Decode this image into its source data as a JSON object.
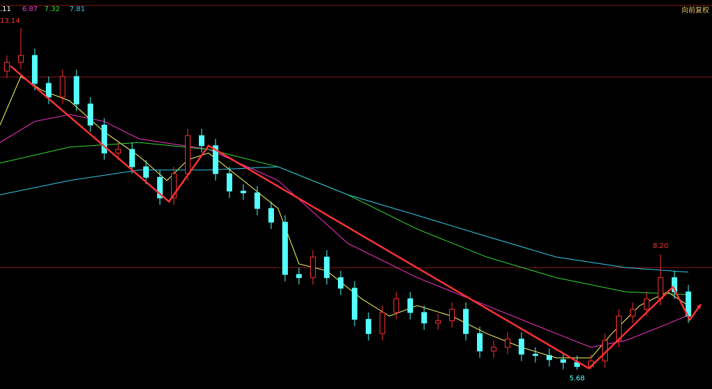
{
  "chart_data": {
    "type": "candlestick",
    "ylim": [
      5.26,
      13.75
    ],
    "background": "#000000",
    "up_color": "#ff3232",
    "down_color": "#54ffff",
    "adjust_label": "向前复权",
    "reference_lines": [
      13.63,
      12.07,
      7.91
    ],
    "candles": {
      "open": [
        12.2,
        12.39,
        12.54,
        11.93,
        11.63,
        12.08,
        11.48,
        11.02,
        10.41,
        10.49,
        10.11,
        9.88,
        9.43,
        9.96,
        10.79,
        10.57,
        9.96,
        9.58,
        9.54,
        9.2,
        8.9,
        7.76,
        7.69,
        8.14,
        7.69,
        7.46,
        6.78,
        6.47,
        6.93,
        7.23,
        6.93,
        6.7,
        6.75,
        7.0,
        6.47,
        6.09,
        6.17,
        6.35,
        6.02,
        5.99,
        5.9,
        5.84,
        5.75,
        5.87,
        6.32,
        6.85,
        7.0,
        7.23,
        7.69,
        7.38
      ],
      "high": [
        12.54,
        13.14,
        12.69,
        12.08,
        12.23,
        12.23,
        11.63,
        11.17,
        10.64,
        10.64,
        10.26,
        10.03,
        10.11,
        10.94,
        10.94,
        10.72,
        10.11,
        9.73,
        9.69,
        9.35,
        9.05,
        7.91,
        8.29,
        8.29,
        7.84,
        7.61,
        6.93,
        7.08,
        7.38,
        7.38,
        7.08,
        6.9,
        7.15,
        7.15,
        6.62,
        6.32,
        6.5,
        6.5,
        6.17,
        6.14,
        6.05,
        5.99,
        6.02,
        6.47,
        7.0,
        7.15,
        7.38,
        8.2,
        7.84,
        7.53
      ],
      "low": [
        12.05,
        12.24,
        11.78,
        11.48,
        11.48,
        11.33,
        10.87,
        10.26,
        10.26,
        9.96,
        9.73,
        9.28,
        9.28,
        9.81,
        10.42,
        9.81,
        9.43,
        9.39,
        9.05,
        8.75,
        7.61,
        7.54,
        7.54,
        7.54,
        7.31,
        6.63,
        6.32,
        6.32,
        6.78,
        6.78,
        6.55,
        6.55,
        6.6,
        6.32,
        5.94,
        5.94,
        6.02,
        5.87,
        5.84,
        5.75,
        5.69,
        5.68,
        5.7,
        5.72,
        6.17,
        6.7,
        6.85,
        7.08,
        7.23,
        6.7
      ],
      "close": [
        12.39,
        12.54,
        11.93,
        11.63,
        12.08,
        11.48,
        11.02,
        10.41,
        10.49,
        10.11,
        9.88,
        9.43,
        9.96,
        10.79,
        10.57,
        9.96,
        9.58,
        9.54,
        9.2,
        8.9,
        7.76,
        7.69,
        8.14,
        7.69,
        7.46,
        6.78,
        6.47,
        6.93,
        7.23,
        6.93,
        6.7,
        6.75,
        7.0,
        6.47,
        6.09,
        6.17,
        6.35,
        6.02,
        5.99,
        5.9,
        5.84,
        5.75,
        5.87,
        6.32,
        6.85,
        7.0,
        7.23,
        7.69,
        7.38,
        6.85
      ]
    },
    "moving_averages": [
      {
        "label": ".11",
        "color": "#ffff66",
        "x": [
          -0.5,
          1,
          2.5,
          4.5,
          7,
          9.5,
          11.5,
          13,
          14.5,
          17,
          19.5,
          21,
          23,
          25.5,
          27.5,
          29.5,
          32,
          34.5,
          37,
          39.5,
          42,
          43.5,
          45.5,
          47.5,
          49
        ],
        "values": [
          11.02,
          12.08,
          11.78,
          11.55,
          10.87,
          10.34,
          9.81,
          10.26,
          10.41,
          9.81,
          9.2,
          7.99,
          7.84,
          7.23,
          6.85,
          7.08,
          6.85,
          6.47,
          6.17,
          5.94,
          5.94,
          6.47,
          7.08,
          7.38,
          7.08
        ]
      },
      {
        "label": "6.87",
        "color": "#ff33cc",
        "x": [
          -0.5,
          2,
          4.5,
          7,
          9.5,
          14.5,
          19.5,
          24.5,
          29.5,
          34.5,
          39.5,
          42,
          44.5,
          47,
          49
        ],
        "values": [
          10.64,
          11.1,
          11.25,
          11.1,
          10.72,
          10.49,
          9.81,
          8.44,
          7.69,
          7.08,
          6.47,
          6.17,
          6.32,
          6.62,
          6.87
        ]
      },
      {
        "label": "7.32",
        "color": "#33dd33",
        "x": [
          -0.5,
          4.5,
          9.5,
          14.5,
          19.5,
          24.5,
          29.5,
          34.5,
          39.5,
          44.5,
          49
        ],
        "values": [
          10.19,
          10.54,
          10.64,
          10.49,
          10.11,
          9.5,
          8.75,
          8.14,
          7.69,
          7.38,
          7.32
        ]
      },
      {
        "label": "7.81",
        "color": "#33ccee",
        "x": [
          -0.5,
          4.5,
          9.5,
          14.5,
          19.5,
          24.5,
          29.5,
          34.5,
          39.5,
          44.5,
          49
        ],
        "values": [
          9.5,
          9.81,
          10.04,
          10.04,
          10.11,
          9.5,
          9.05,
          8.59,
          8.14,
          7.91,
          7.81
        ]
      }
    ],
    "zigzag": {
      "color": "#ff3333",
      "x": [
        0.25,
        11.65,
        14.5,
        41.85,
        47.9,
        49.1,
        49.9
      ],
      "values": [
        12.31,
        9.35,
        10.57,
        5.71,
        7.49,
        6.77,
        7.11
      ]
    },
    "annotations": [
      {
        "index": 1,
        "at": "high",
        "label": "13.14",
        "color": "#ff3232"
      },
      {
        "index": 47,
        "at": "high",
        "label": "8.20",
        "color": "#ff3232"
      },
      {
        "index": 41,
        "at": "low",
        "label": "5.68",
        "color": "#54ffff"
      }
    ]
  }
}
